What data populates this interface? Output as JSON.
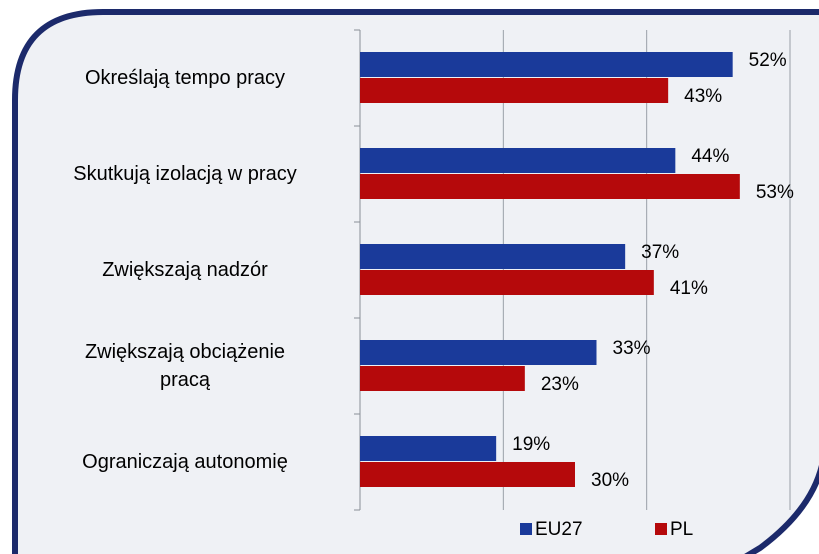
{
  "chart_data": {
    "type": "hbar",
    "categories": [
      "Określają tempo pracy",
      "Skutkują izolacją w pracy",
      "Zwiększają nadzór",
      "Zwiększają obciążenie\npracą",
      "Ograniczają autonomię"
    ],
    "series": [
      {
        "name": "EU27",
        "color": "#1a3a9a",
        "values": [
          52,
          44,
          37,
          33,
          19
        ],
        "value_labels": [
          "52%",
          "44%",
          "37%",
          "33%",
          "19%"
        ]
      },
      {
        "name": "PL",
        "color": "#b5090b",
        "values": [
          43,
          53,
          41,
          23,
          30
        ],
        "value_labels": [
          "43%",
          "53%",
          "41%",
          "23%",
          "30%"
        ]
      }
    ],
    "xlim": [
      0,
      60
    ],
    "xticks": [
      0,
      20,
      40,
      60
    ],
    "grid": true,
    "legend": "bottom"
  }
}
